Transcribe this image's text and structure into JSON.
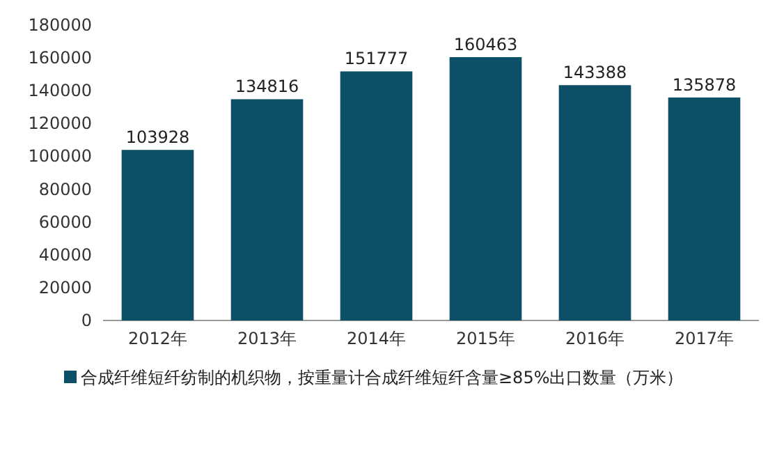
{
  "chart_data": {
    "type": "bar",
    "categories": [
      "2012年",
      "2013年",
      "2014年",
      "2015年",
      "2016年",
      "2017年"
    ],
    "series": [
      {
        "name": "合成纤维短纤纺制的机织物，按重量计合成纤维短纤含量≥85%出口数量（万米）",
        "color": "#0d4f66",
        "values": [
          103928,
          134816,
          151777,
          160463,
          143388,
          135878
        ]
      }
    ],
    "ylim": [
      0,
      180000
    ],
    "yticks": [
      0,
      20000,
      40000,
      60000,
      80000,
      100000,
      120000,
      140000,
      160000,
      180000
    ],
    "data_labels": true,
    "grid": false,
    "legend": "bottom"
  }
}
